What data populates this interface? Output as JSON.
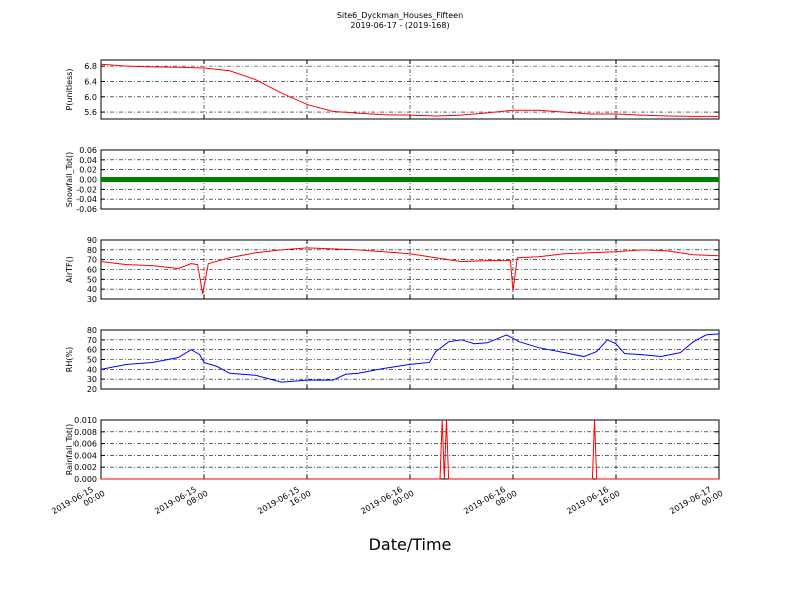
{
  "title": "Site6_Dyckman_Houses_Fifteen",
  "subtitle": "2019-06-17 - (2019-168)",
  "xlabel": "Date/Time",
  "chart_data": [
    {
      "type": "line",
      "ylabel": "P(unitless)",
      "grid": true,
      "xlim": [
        "2019-06-15 00:00",
        "2019-06-17 00:00"
      ],
      "xticks": [
        "2019-06-15 00:00",
        "2019-06-15 08:00",
        "2019-06-15 16:00",
        "2019-06-16 00:00",
        "2019-06-16 08:00",
        "2019-06-16 16:00",
        "2019-06-17 00:00"
      ],
      "ylim": [
        5.42,
        6.96
      ],
      "yticks": [
        5.6,
        {
          "value": 6,
          "label": "6.0"
        },
        6.4,
        6.8
      ],
      "x": [
        "2019-06-15 00:00",
        "2019-06-15 02:00",
        "2019-06-15 04:00",
        "2019-06-15 06:00",
        "2019-06-15 08:00",
        "2019-06-15 10:00",
        "2019-06-15 12:00",
        "2019-06-15 14:00",
        "2019-06-15 16:00",
        "2019-06-15 18:00",
        "2019-06-15 20:00",
        "2019-06-15 22:00",
        "2019-06-16 00:00",
        "2019-06-16 02:00",
        "2019-06-16 04:00",
        "2019-06-16 06:00",
        "2019-06-16 08:00",
        "2019-06-16 10:00",
        "2019-06-16 12:00",
        "2019-06-16 14:00",
        "2019-06-16 16:00",
        "2019-06-16 18:00",
        "2019-06-16 20:00",
        "2019-06-16 22:00",
        "2019-06-17 00:00"
      ],
      "series": [
        {
          "color": "#ff0000",
          "values": [
            6.85,
            6.8,
            6.78,
            6.77,
            6.75,
            6.68,
            6.45,
            6.1,
            5.8,
            5.62,
            5.57,
            5.53,
            5.52,
            5.5,
            5.52,
            5.58,
            5.65,
            5.65,
            5.6,
            5.55,
            5.55,
            5.52,
            5.5,
            5.49,
            5.49
          ]
        }
      ]
    },
    {
      "type": "line",
      "ylabel": "Snowfall_Tot()",
      "grid": true,
      "xlim": [
        "2019-06-15 00:00",
        "2019-06-17 00:00"
      ],
      "xticks": [
        "2019-06-15 00:00",
        "2019-06-15 08:00",
        "2019-06-15 16:00",
        "2019-06-16 00:00",
        "2019-06-16 08:00",
        "2019-06-16 16:00",
        "2019-06-17 00:00"
      ],
      "ylim": [
        -0.06,
        0.06
      ],
      "yticks": [
        -0.06,
        -0.04,
        -0.02,
        {
          "value": 0,
          "label": "0.00"
        },
        0.02,
        0.04,
        0.06
      ],
      "x": [
        "2019-06-15 00:00",
        "2019-06-15 04:00",
        "2019-06-15 08:00",
        "2019-06-15 12:00",
        "2019-06-15 16:00",
        "2019-06-15 20:00",
        "2019-06-16 00:00",
        "2019-06-16 04:00",
        "2019-06-16 08:00",
        "2019-06-16 12:00",
        "2019-06-16 16:00",
        "2019-06-16 20:00",
        "2019-06-17 00:00"
      ],
      "series": [
        {
          "color": "#008000",
          "values": [
            0,
            0,
            0,
            0,
            0,
            0,
            0,
            0,
            0,
            0,
            0,
            0,
            0
          ]
        }
      ]
    },
    {
      "type": "line",
      "ylabel": "AirTF()",
      "grid": true,
      "xlim": [
        "2019-06-15 00:00",
        "2019-06-17 00:00"
      ],
      "xticks": [
        "2019-06-15 00:00",
        "2019-06-15 08:00",
        "2019-06-15 16:00",
        "2019-06-16 00:00",
        "2019-06-16 08:00",
        "2019-06-16 16:00",
        "2019-06-17 00:00"
      ],
      "ylim": [
        30,
        90
      ],
      "yticks": [
        30,
        40,
        50,
        60,
        70,
        80,
        90
      ],
      "x": [
        "2019-06-15 00:00",
        "2019-06-15 02:00",
        "2019-06-15 04:00",
        "2019-06-15 06:00",
        "2019-06-15 07:00",
        "2019-06-15 07:30",
        "2019-06-15 07:54",
        "2019-06-15 08:20",
        "2019-06-15 10:00",
        "2019-06-15 12:00",
        "2019-06-15 14:00",
        "2019-06-15 16:00",
        "2019-06-15 18:00",
        "2019-06-15 20:00",
        "2019-06-15 22:00",
        "2019-06-16 00:00",
        "2019-06-16 02:00",
        "2019-06-16 04:00",
        "2019-06-16 06:00",
        "2019-06-16 07:48",
        "2019-06-16 08:00",
        "2019-06-16 08:20",
        "2019-06-16 10:00",
        "2019-06-16 12:00",
        "2019-06-16 14:00",
        "2019-06-16 16:00",
        "2019-06-16 18:00",
        "2019-06-16 20:00",
        "2019-06-16 22:00",
        "2019-06-17 00:00"
      ],
      "series": [
        {
          "color": "#ff0000",
          "values": [
            68,
            65,
            64,
            61,
            66,
            65,
            35,
            66,
            72,
            77,
            80,
            82,
            81,
            80,
            78,
            76,
            72,
            68,
            69,
            69,
            38,
            72,
            73,
            76,
            77,
            78,
            80,
            79,
            75,
            74
          ]
        }
      ]
    },
    {
      "type": "line",
      "ylabel": "RH(%)",
      "grid": true,
      "xlim": [
        "2019-06-15 00:00",
        "2019-06-17 00:00"
      ],
      "xticks": [
        "2019-06-15 00:00",
        "2019-06-15 08:00",
        "2019-06-15 16:00",
        "2019-06-16 00:00",
        "2019-06-16 08:00",
        "2019-06-16 16:00",
        "2019-06-17 00:00"
      ],
      "ylim": [
        20,
        80
      ],
      "yticks": [
        20,
        30,
        40,
        50,
        60,
        70,
        80
      ],
      "x": [
        "2019-06-15 00:00",
        "2019-06-15 02:00",
        "2019-06-15 04:00",
        "2019-06-15 06:00",
        "2019-06-15 07:00",
        "2019-06-15 07:40",
        "2019-06-15 08:00",
        "2019-06-15 09:00",
        "2019-06-15 10:00",
        "2019-06-15 12:00",
        "2019-06-15 14:00",
        "2019-06-15 16:00",
        "2019-06-15 18:00",
        "2019-06-15 19:00",
        "2019-06-15 20:00",
        "2019-06-15 22:00",
        "2019-06-16 00:00",
        "2019-06-16 01:30",
        "2019-06-16 02:00",
        "2019-06-16 03:00",
        "2019-06-16 04:00",
        "2019-06-16 05:00",
        "2019-06-16 06:00",
        "2019-06-16 07:30",
        "2019-06-16 08:30",
        "2019-06-16 10:00",
        "2019-06-16 12:00",
        "2019-06-16 13:30",
        "2019-06-16 14:30",
        "2019-06-16 15:20",
        "2019-06-16 16:00",
        "2019-06-16 16:40",
        "2019-06-16 18:00",
        "2019-06-16 19:30",
        "2019-06-16 21:00",
        "2019-06-16 22:00",
        "2019-06-16 23:00",
        "2019-06-17 00:00"
      ],
      "series": [
        {
          "color": "#0000ff",
          "values": [
            40,
            45,
            47,
            52,
            60,
            55,
            47,
            43,
            36,
            34,
            27,
            29,
            29,
            35,
            36,
            41,
            45,
            47,
            58,
            68,
            70,
            66,
            67,
            75,
            68,
            62,
            57,
            53,
            58,
            70,
            66,
            56,
            55,
            53,
            57,
            68,
            75,
            76
          ]
        }
      ]
    },
    {
      "type": "line",
      "ylabel": "Rainfall_Tot()",
      "grid": true,
      "xlim": [
        "2019-06-15 00:00",
        "2019-06-17 00:00"
      ],
      "xticks": [
        "2019-06-15 00:00",
        "2019-06-15 08:00",
        "2019-06-15 16:00",
        "2019-06-16 00:00",
        "2019-06-16 08:00",
        "2019-06-16 16:00",
        "2019-06-17 00:00"
      ],
      "ylim": [
        0,
        0.01
      ],
      "yticks": [
        {
          "value": 0,
          "label": "0.000"
        },
        {
          "value": 0.002,
          "label": "0.002"
        },
        {
          "value": 0.004,
          "label": "0.004"
        },
        {
          "value": 0.006,
          "label": "0.006"
        },
        {
          "value": 0.008,
          "label": "0.008"
        },
        {
          "value": 0.01,
          "label": "0.010"
        }
      ],
      "x": [
        "2019-06-15 00:00",
        "2019-06-16 02:20",
        "2019-06-16 02:30",
        "2019-06-16 02:40",
        "2019-06-16 02:50",
        "2019-06-16 03:00",
        "2019-06-16 03:10",
        "2019-06-16 14:10",
        "2019-06-16 14:20",
        "2019-06-16 14:30",
        "2019-06-17 00:00"
      ],
      "series": [
        {
          "color": "#ff0000",
          "values": [
            0,
            0,
            0.01,
            0,
            0.01,
            0,
            0,
            0,
            0.01,
            0,
            0
          ]
        }
      ]
    }
  ]
}
